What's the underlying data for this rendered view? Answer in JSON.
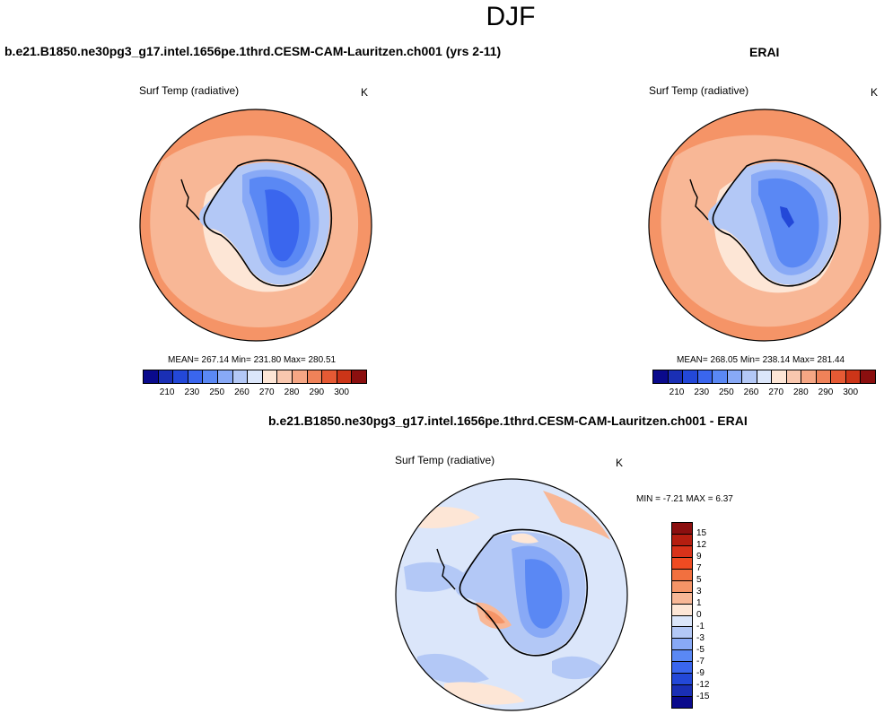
{
  "season": "DJF",
  "panels": {
    "model": {
      "case_title": "b.e21.B1850.ne30pg3_g17.intel.1656pe.1thrd.CESM-CAM-Lauritzen.ch001 (yrs 2-11)",
      "variable": "Surf Temp (radiative)",
      "units": "K",
      "stats": "MEAN= 267.14  Min= 231.80  Max= 280.51",
      "mean": 267.14,
      "min": 231.8,
      "max": 280.51
    },
    "obs": {
      "case_title": "ERAI",
      "variable": "Surf Temp (radiative)",
      "units": "K",
      "stats": "MEAN= 268.05  Min= 238.14  Max= 281.44",
      "mean": 268.05,
      "min": 238.14,
      "max": 281.44
    },
    "diff": {
      "case_title": "b.e21.B1850.ne30pg3_g17.intel.1656pe.1thrd.CESM-CAM-Lauritzen.ch001 - ERAI",
      "variable": "Surf Temp (radiative)",
      "units": "K",
      "stats": "MIN =  -7.21 MAX =  6.37",
      "min": -7.21,
      "max": 6.37
    }
  },
  "colorbar_abs": {
    "labels": [
      "210",
      "230",
      "250",
      "260",
      "270",
      "280",
      "290",
      "300"
    ],
    "colors": [
      "#0a0a8c",
      "#1a2fb5",
      "#2348d8",
      "#3a66ee",
      "#5a88f4",
      "#88a9f6",
      "#b3c8f6",
      "#dbe6fa",
      "#fde6d6",
      "#f9c7ae",
      "#f5a684",
      "#ef8259",
      "#e65a34",
      "#cc3518",
      "#8b0f0f"
    ]
  },
  "colorbar_diff": {
    "labels": [
      "15",
      "12",
      "9",
      "7",
      "5",
      "3",
      "1",
      "0",
      "-1",
      "-3",
      "-5",
      "-7",
      "-9",
      "-12",
      "-15"
    ],
    "colors": [
      "#8b0f0f",
      "#b51e10",
      "#d8321a",
      "#ef4b22",
      "#f2703f",
      "#f59467",
      "#f8b796",
      "#fde6d6",
      "#dbe6fa",
      "#b3c8f6",
      "#88a9f6",
      "#5a88f4",
      "#3a66ee",
      "#2348d8",
      "#1a2fb5",
      "#0a0a8c"
    ]
  }
}
